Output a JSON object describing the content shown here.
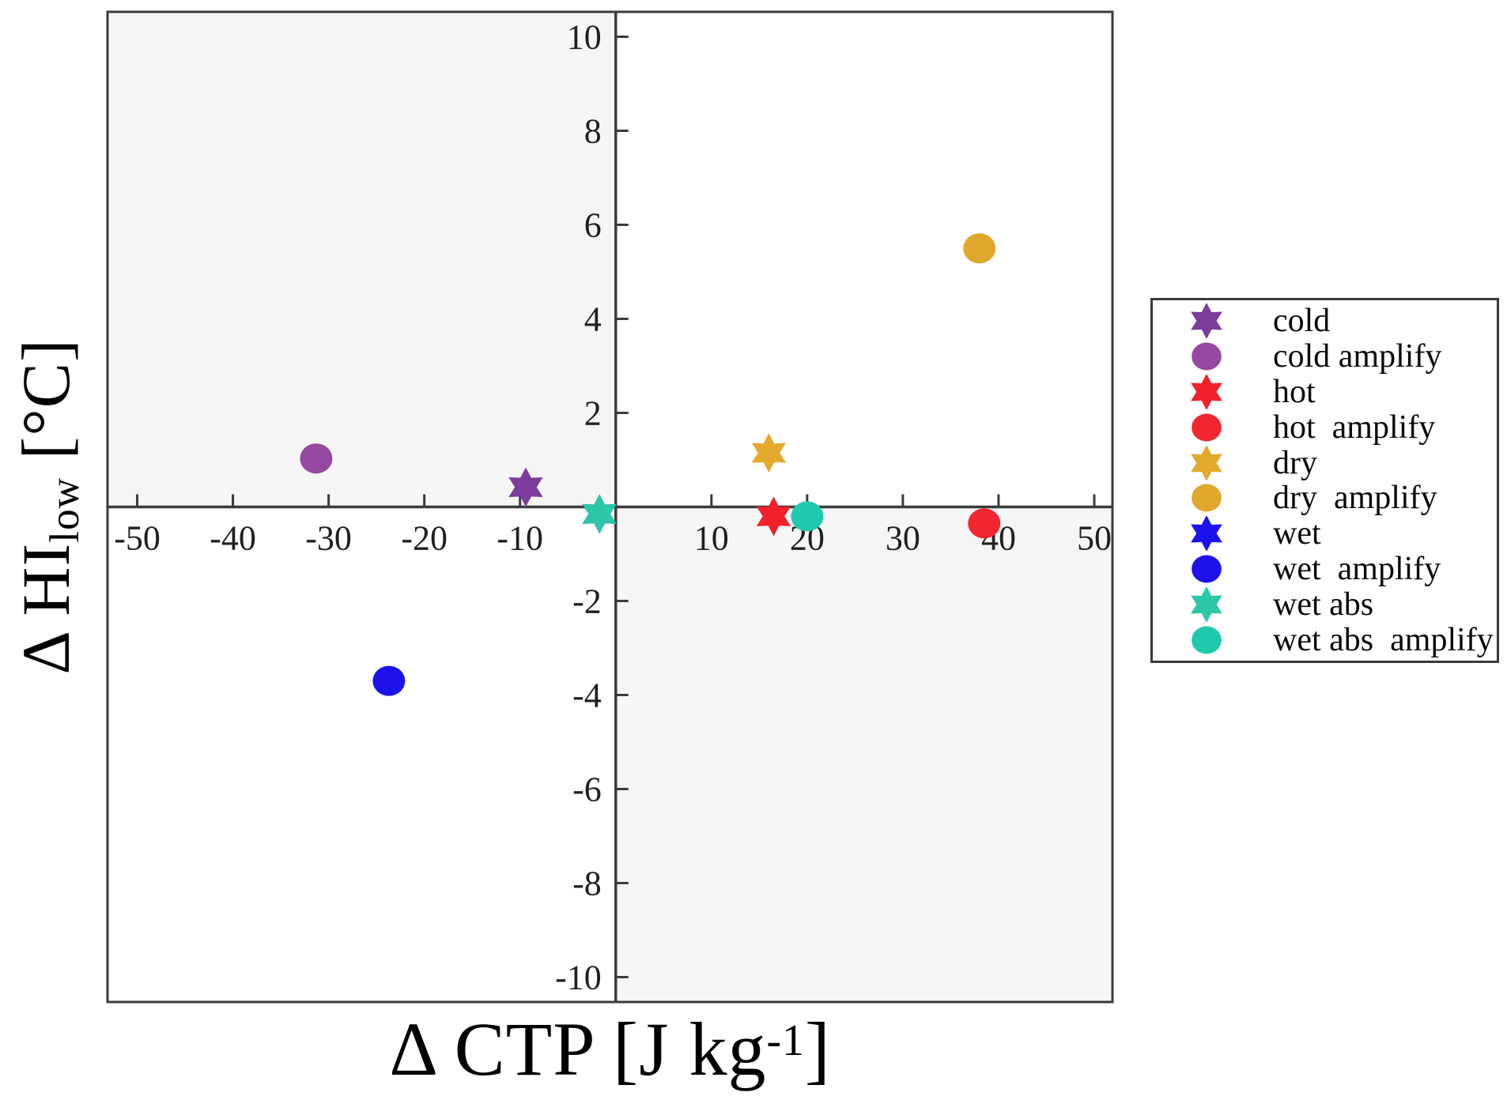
{
  "figure": {
    "xlabel": {
      "prefix": "Δ CTP [J kg",
      "sup": "-1",
      "suffix": "]"
    },
    "ylabel": {
      "prefix": "Δ HI",
      "sub": "low",
      "suffix": " [°C]"
    },
    "colors": {
      "axis": "#3b3b3b",
      "plot_border": "#3b3b3b",
      "quadrant_shading": "#f6f6f6",
      "tick_text": "#1f1f1f",
      "background": "#ffffff"
    }
  },
  "chart_data": {
    "type": "scatter",
    "title": "",
    "xlabel": "Δ CTP [J kg⁻¹]",
    "ylabel": "Δ HI_low [°C]",
    "xlim": [
      -53.1,
      51.9
    ],
    "ylim": [
      -10.53,
      10.53
    ],
    "x_ticks": [
      -50,
      -40,
      -30,
      -20,
      -10,
      10,
      20,
      30,
      40,
      50
    ],
    "y_ticks": [
      -10,
      -8,
      -6,
      -4,
      -2,
      2,
      4,
      6,
      8,
      10
    ],
    "grid": false,
    "legend_position": "outside-right",
    "shaded_quadrants": [
      "upper-left",
      "lower-right"
    ],
    "series": [
      {
        "name": "cold",
        "legend_label": "cold",
        "marker": "star",
        "color": "#7b3c9c",
        "points": [
          [
            -9.4,
            0.42
          ]
        ]
      },
      {
        "name": "cold-amplify",
        "legend_label": "cold amplify",
        "marker": "circle",
        "color": "#94489f",
        "points": [
          [
            -31.3,
            1.03
          ]
        ]
      },
      {
        "name": "hot",
        "legend_label": "hot",
        "marker": "star",
        "color": "#f1202b",
        "points": [
          [
            16.5,
            -0.2
          ]
        ]
      },
      {
        "name": "hot-amplify",
        "legend_label": "hot  amplify",
        "marker": "circle",
        "color": "#f2262e",
        "points": [
          [
            38.5,
            -0.35
          ]
        ]
      },
      {
        "name": "dry",
        "legend_label": "dry",
        "marker": "star",
        "color": "#e4aa2e",
        "points": [
          [
            16.0,
            1.15
          ]
        ]
      },
      {
        "name": "dry-amplify",
        "legend_label": "dry  amplify",
        "marker": "circle",
        "color": "#e0a72d",
        "points": [
          [
            38.0,
            5.5
          ]
        ]
      },
      {
        "name": "wet",
        "legend_label": "wet",
        "marker": "star",
        "color": "#1c12ee",
        "points": [
          [
            -1.7,
            -0.15
          ]
        ]
      },
      {
        "name": "wet-amplify",
        "legend_label": "wet  amplify",
        "marker": "circle",
        "color": "#1d13ea",
        "points": [
          [
            -23.7,
            -3.7
          ]
        ]
      },
      {
        "name": "wet-abs",
        "legend_label": "wet abs",
        "marker": "star",
        "color": "#2bc7a6",
        "points": [
          [
            -1.7,
            -0.15
          ]
        ]
      },
      {
        "name": "wet-abs-amplify",
        "legend_label": "wet abs  amplify",
        "marker": "circle",
        "color": "#1fc9ae",
        "points": [
          [
            20.0,
            -0.2
          ]
        ]
      }
    ]
  }
}
